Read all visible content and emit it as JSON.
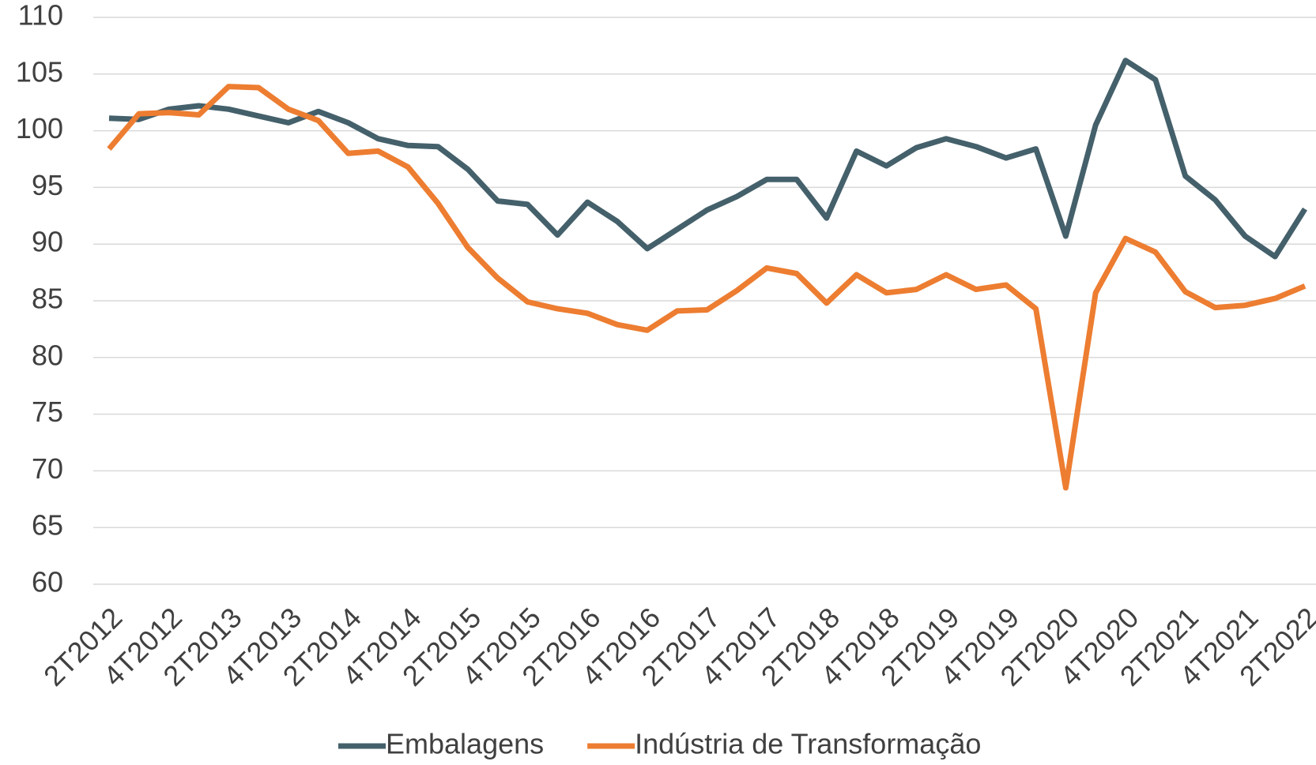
{
  "chart_data": {
    "type": "line",
    "categories": [
      "2T2012",
      null,
      "4T2012",
      null,
      "2T2013",
      null,
      "4T2013",
      null,
      "2T2014",
      null,
      "4T2014",
      null,
      "2T2015",
      null,
      "4T2015",
      null,
      "2T2016",
      null,
      "4T2016",
      null,
      "2T2017",
      null,
      "4T2017",
      null,
      "2T2018",
      null,
      "4T2018",
      null,
      "2T2019",
      null,
      "4T2019",
      null,
      "2T2020",
      null,
      "4T2020",
      null,
      "2T2021",
      null,
      "4T2021",
      null,
      "2T2022"
    ],
    "series": [
      {
        "name": "Embalagens",
        "color": "#44606b",
        "values": [
          101.1,
          101.0,
          101.9,
          102.2,
          101.9,
          101.3,
          100.7,
          101.7,
          100.7,
          99.3,
          98.7,
          98.6,
          96.6,
          93.8,
          93.5,
          90.8,
          93.7,
          92.0,
          89.6,
          91.3,
          93.0,
          94.2,
          95.7,
          95.7,
          92.3,
          98.2,
          96.9,
          98.5,
          99.3,
          98.6,
          97.6,
          98.4,
          90.7,
          100.5,
          106.2,
          104.5,
          96.0,
          93.9,
          90.7,
          88.9,
          93.1
        ]
      },
      {
        "name": "Indústria de Transformação",
        "color": "#ed7d31",
        "values": [
          98.4,
          101.5,
          101.6,
          101.4,
          103.9,
          103.8,
          101.9,
          100.9,
          98.0,
          98.2,
          96.8,
          93.6,
          89.7,
          87.0,
          84.9,
          84.3,
          83.9,
          82.9,
          82.4,
          84.1,
          84.2,
          85.9,
          87.9,
          87.4,
          84.8,
          87.3,
          85.7,
          86.0,
          87.3,
          86.0,
          86.4,
          84.3,
          68.5,
          85.7,
          90.5,
          89.3,
          85.8,
          84.4,
          84.6,
          85.2,
          86.3
        ]
      }
    ],
    "ylim": [
      60,
      110
    ],
    "yticks": [
      60,
      65,
      70,
      75,
      80,
      85,
      90,
      95,
      100,
      105,
      110
    ],
    "grid": true,
    "legend": "bottom"
  }
}
